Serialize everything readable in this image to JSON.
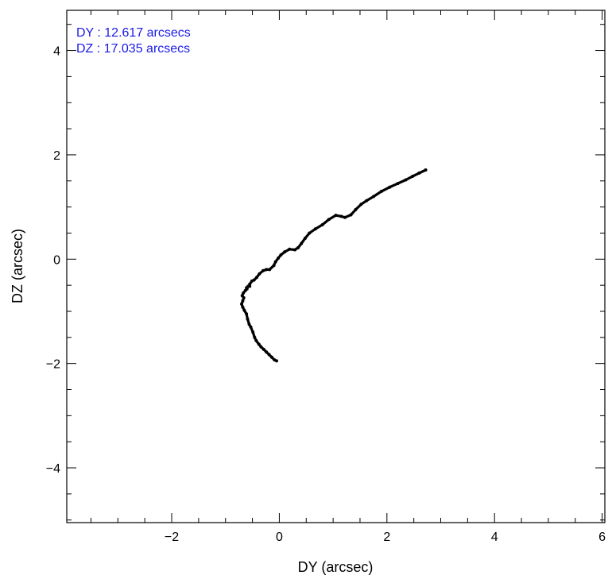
{
  "colors": {
    "annotation": "#1a1ae6",
    "trace": "#000000",
    "axes": "#000000"
  },
  "chart_data": {
    "type": "line",
    "xlabel": "DY (arcsec)",
    "ylabel": "DZ (arcsec)",
    "xlim": [
      -3.95,
      6.05
    ],
    "ylim": [
      -5.05,
      4.77
    ],
    "xticks": [
      -2,
      0,
      2,
      4,
      6
    ],
    "xtick_labels": [
      "−2",
      "0",
      "2",
      "4",
      "6"
    ],
    "yticks": [
      -4,
      -2,
      0,
      2,
      4
    ],
    "ytick_labels": [
      "−4",
      "−2",
      "0",
      "2",
      "4"
    ],
    "x_minor_step": 0.5,
    "y_minor_step": 0.5,
    "grid": false,
    "legend": false,
    "annotations": [
      "DY : 12.617 arcsecs",
      "DZ : 17.035 arcsecs"
    ],
    "series": [
      {
        "x": [
          -0.05,
          -0.09,
          -0.14,
          -0.19,
          -0.24,
          -0.29,
          -0.34,
          -0.38,
          -0.43,
          -0.46,
          -0.49,
          -0.53,
          -0.56,
          -0.59,
          -0.61,
          -0.65,
          -0.68,
          -0.7,
          -0.68,
          -0.66,
          -0.69,
          -0.67,
          -0.63,
          -0.6,
          -0.61,
          -0.58,
          -0.55,
          -0.55,
          -0.51,
          -0.47,
          -0.42,
          -0.37,
          -0.3,
          -0.24,
          -0.18,
          -0.1,
          -0.07,
          -0.02,
          0.03,
          0.1,
          0.19,
          0.29,
          0.35,
          0.41,
          0.48,
          0.56,
          0.67,
          0.8,
          0.92,
          1.05,
          1.15,
          1.22,
          1.33,
          1.42,
          1.52,
          1.62,
          1.75,
          1.9,
          2.05,
          2.2,
          2.35,
          2.48,
          2.6,
          2.72
        ],
        "y": [
          -1.95,
          -1.93,
          -1.88,
          -1.83,
          -1.78,
          -1.73,
          -1.68,
          -1.63,
          -1.56,
          -1.5,
          -1.4,
          -1.3,
          -1.25,
          -1.15,
          -1.05,
          -0.98,
          -0.92,
          -0.86,
          -0.8,
          -0.74,
          -0.7,
          -0.65,
          -0.6,
          -0.57,
          -0.55,
          -0.52,
          -0.52,
          -0.48,
          -0.42,
          -0.4,
          -0.35,
          -0.28,
          -0.22,
          -0.2,
          -0.2,
          -0.12,
          -0.05,
          0.02,
          0.08,
          0.14,
          0.19,
          0.18,
          0.22,
          0.3,
          0.4,
          0.5,
          0.58,
          0.66,
          0.76,
          0.84,
          0.82,
          0.8,
          0.85,
          0.95,
          1.05,
          1.12,
          1.2,
          1.3,
          1.38,
          1.45,
          1.52,
          1.59,
          1.65,
          1.71
        ]
      }
    ]
  }
}
